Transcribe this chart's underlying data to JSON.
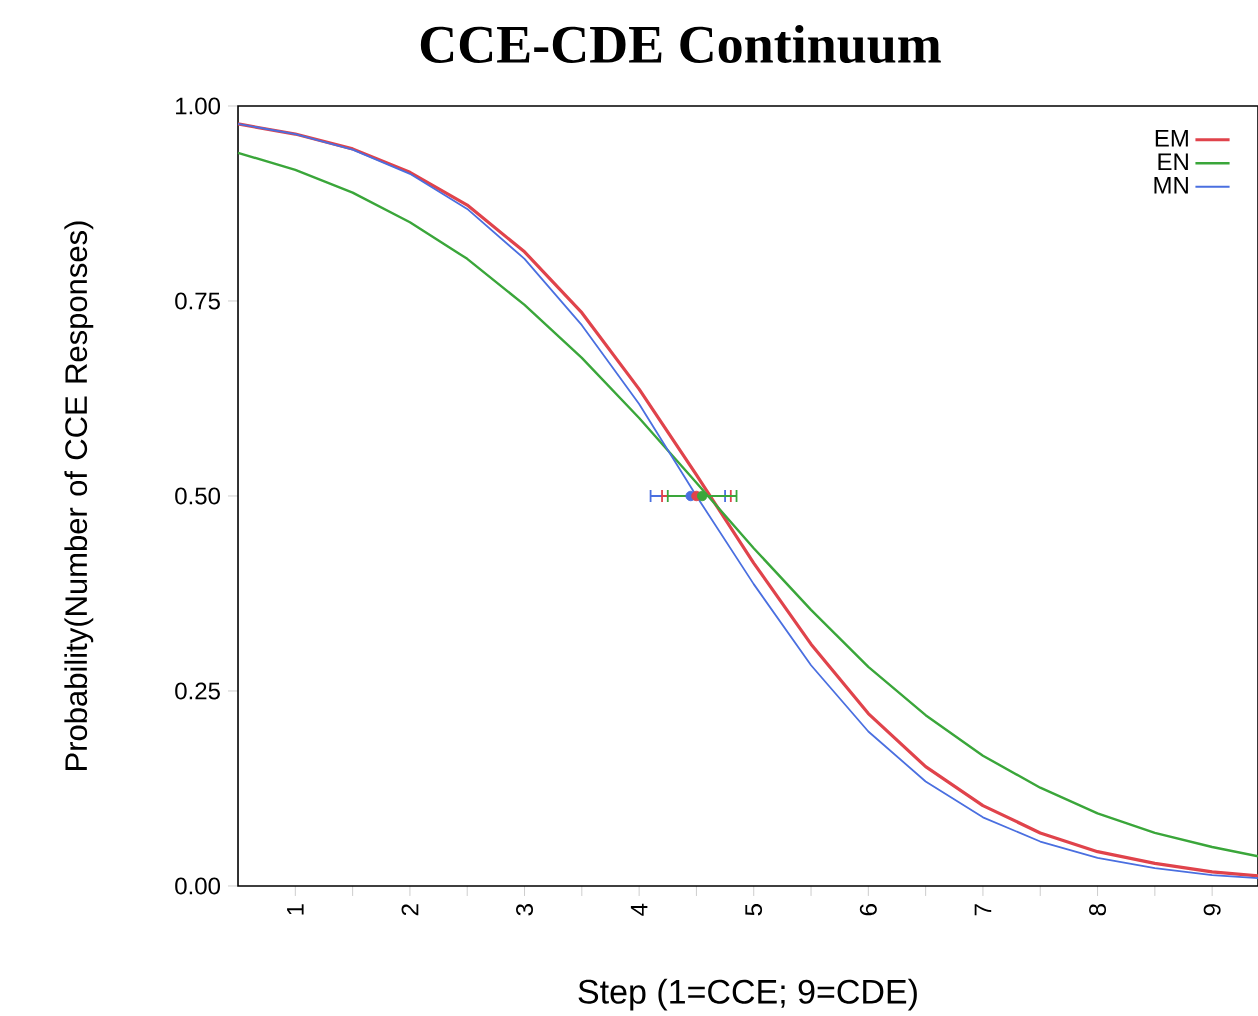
{
  "chart_data": {
    "type": "line",
    "title": "CCE-CDE Continuum",
    "xlabel": "Step (1=CCE; 9=CDE)",
    "ylabel": "Probability(Number of CCE Responses)",
    "x": [
      0.5,
      1,
      1.5,
      2,
      2.5,
      3,
      3.5,
      4,
      4.5,
      5,
      5.5,
      6,
      6.5,
      7,
      7.5,
      8,
      8.5,
      9,
      9.4
    ],
    "series": [
      {
        "name": "EM",
        "color": "#e0434b",
        "values": [
          0.977,
          0.964,
          0.945,
          0.915,
          0.873,
          0.813,
          0.735,
          0.637,
          0.527,
          0.414,
          0.31,
          0.221,
          0.153,
          0.103,
          0.068,
          0.044,
          0.029,
          0.018,
          0.013
        ]
      },
      {
        "name": "EN",
        "color": "#3aa63a",
        "values": [
          0.94,
          0.918,
          0.889,
          0.851,
          0.804,
          0.745,
          0.677,
          0.6,
          0.517,
          0.433,
          0.354,
          0.281,
          0.219,
          0.167,
          0.126,
          0.093,
          0.068,
          0.05,
          0.038
        ]
      },
      {
        "name": "MN",
        "color": "#4a6fe0",
        "values": [
          0.977,
          0.964,
          0.944,
          0.913,
          0.868,
          0.804,
          0.719,
          0.618,
          0.5,
          0.387,
          0.283,
          0.198,
          0.134,
          0.088,
          0.057,
          0.036,
          0.023,
          0.014,
          0.01
        ]
      },
      {
        "type": "scatter",
        "color": "#4a6fe0",
        "x": [
          4.45
        ],
        "values": [
          0.5
        ],
        "xerrors": [
          [
            4.1,
            4.75
          ]
        ]
      },
      {
        "type": "scatter",
        "color": "#e0434b",
        "x": [
          4.5
        ],
        "values": [
          0.5
        ],
        "xerrors": [
          [
            4.2,
            4.8
          ]
        ]
      },
      {
        "type": "scatter",
        "color": "#3aa63a",
        "x": [
          4.55
        ],
        "values": [
          0.5
        ],
        "xerrors": [
          [
            4.25,
            4.85
          ]
        ]
      }
    ],
    "xlim": [
      0.5,
      9.4
    ],
    "ylim": [
      0,
      1
    ],
    "xticks": [
      1,
      {
        "value": 1.5,
        "label": null
      },
      2,
      {
        "value": 2.5,
        "label": null
      },
      3,
      {
        "value": 3.5,
        "label": null
      },
      4,
      {
        "value": 4.5,
        "label": null
      },
      5,
      {
        "value": 5.5,
        "label": null
      },
      6,
      {
        "value": 6.5,
        "label": null
      },
      7,
      {
        "value": 7.5,
        "label": null
      },
      8,
      {
        "value": 8.5,
        "label": null
      },
      9
    ],
    "yticks": [
      {
        "value": 0,
        "label": "0.00"
      },
      {
        "value": 0.25,
        "label": "0.25"
      },
      {
        "value": 0.5,
        "label": "0.50"
      },
      {
        "value": 0.75,
        "label": "0.75"
      },
      {
        "value": 1,
        "label": "1.00"
      }
    ],
    "legend": "top right",
    "line_style": "solid"
  }
}
